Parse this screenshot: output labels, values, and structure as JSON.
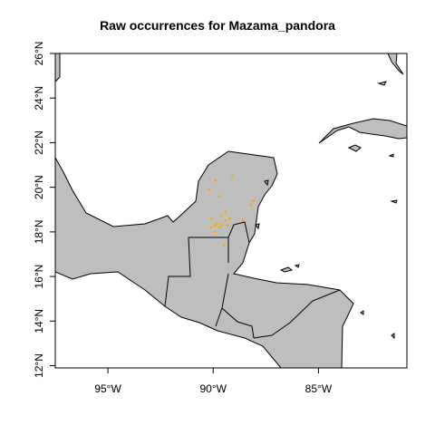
{
  "title": "Raw occurrences for Mazama_pandora",
  "colors": {
    "land": "#bebebe",
    "border": "#000000",
    "occurrence": "#ffa500",
    "background": "#ffffff"
  },
  "map": {
    "lon_range": [
      -97.5,
      -80.8
    ],
    "lat_range": [
      11.9,
      26.0
    ],
    "x_ticks": [
      {
        "lon": -95,
        "label": "95°W"
      },
      {
        "lon": -90,
        "label": "90°W"
      },
      {
        "lon": -85,
        "label": "85°W"
      }
    ],
    "y_ticks": [
      {
        "lat": 12,
        "label": "12°N"
      },
      {
        "lat": 14,
        "label": "14°N"
      },
      {
        "lat": 16,
        "label": "16°N"
      },
      {
        "lat": 18,
        "label": "18°N"
      },
      {
        "lat": 20,
        "label": "20°N"
      },
      {
        "lat": 22,
        "label": "22°N"
      },
      {
        "lat": 24,
        "label": "24°N"
      },
      {
        "lat": 26,
        "label": "26°N"
      }
    ],
    "occurrences": [
      [
        -89.1,
        20.5
      ],
      [
        -89.9,
        20.3
      ],
      [
        -90.2,
        19.9
      ],
      [
        -89.7,
        19.6
      ],
      [
        -88.1,
        19.4
      ],
      [
        -88.2,
        19.2
      ],
      [
        -89.4,
        18.9
      ],
      [
        -89.6,
        18.7
      ],
      [
        -90.1,
        18.6
      ],
      [
        -89.2,
        18.6
      ],
      [
        -89.4,
        18.5
      ],
      [
        -89.8,
        18.4
      ],
      [
        -89.6,
        18.3
      ],
      [
        -89.9,
        18.3
      ],
      [
        -90.1,
        18.2
      ],
      [
        -89.7,
        18.2
      ],
      [
        -89.3,
        18.3
      ],
      [
        -88.6,
        18.5
      ],
      [
        -89.9,
        18.0
      ],
      [
        -89.5,
        17.4
      ]
    ]
  }
}
